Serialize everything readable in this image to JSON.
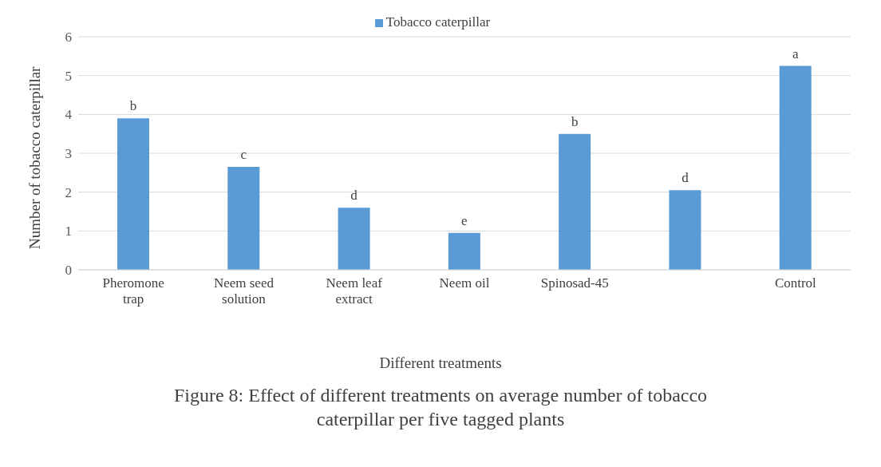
{
  "chart_data": {
    "type": "bar",
    "title": "Figure 8: Effect of different treatments on average number of tobacco caterpillar per five tagged plants",
    "xlabel": "Different treatments",
    "ylabel": "Number of tobacco caterpillar",
    "categories": [
      "Pheromone trap",
      "Neem seed solution",
      "Neem leaf extract",
      "Neem oil",
      "Spinosad-45",
      null,
      "Control"
    ],
    "series": [
      {
        "name": "Tobacco caterpillar",
        "color": "#5b9bd5",
        "values": [
          3.9,
          2.65,
          1.6,
          0.95,
          3.5,
          2.05,
          5.25
        ],
        "value_labels": [
          "b",
          "c",
          "d",
          "e",
          "b",
          "d",
          "a"
        ]
      }
    ],
    "ylim": [
      0,
      6
    ],
    "yticks": [
      0,
      1,
      2,
      3,
      4,
      5,
      6
    ],
    "grid": "y",
    "legend": "top"
  }
}
